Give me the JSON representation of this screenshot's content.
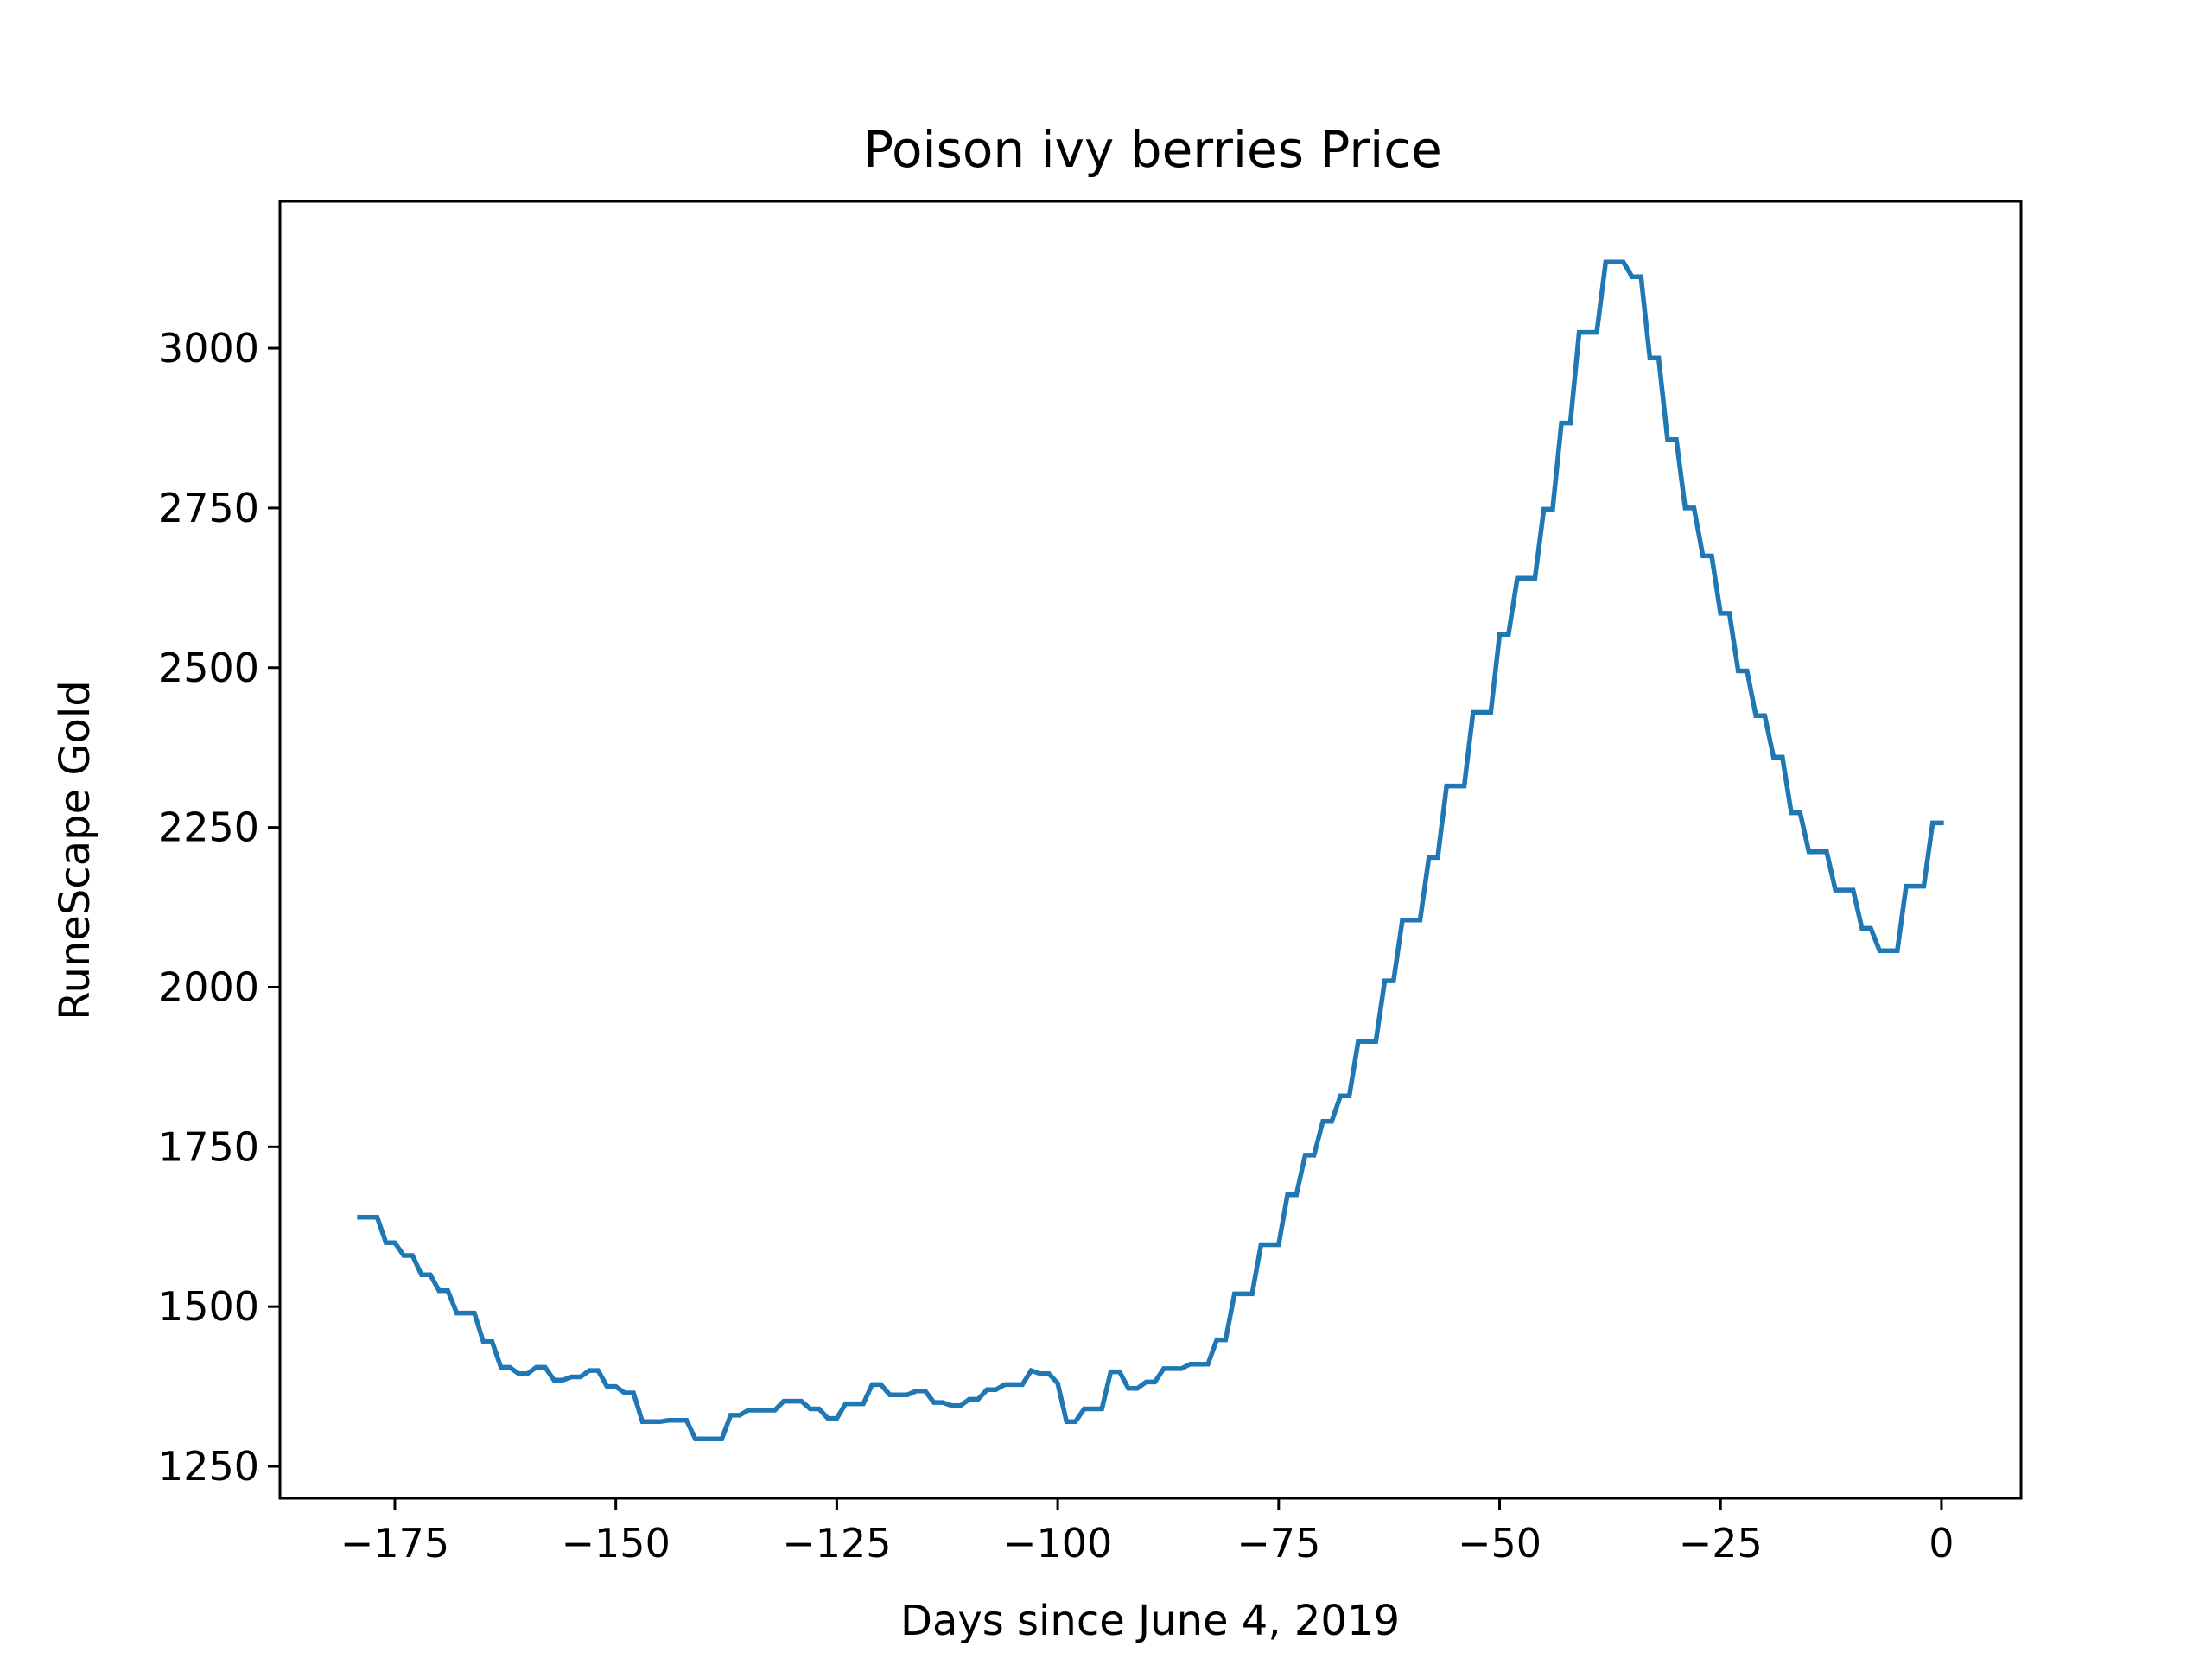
{
  "chart_data": {
    "type": "line",
    "title": "Poison ivy berries Price",
    "xlabel": "Days since June 4, 2019",
    "ylabel": "RuneScape Gold",
    "xlim": [
      -188,
      9
    ],
    "ylim": [
      1200,
      3230
    ],
    "xticks": [
      -175,
      -150,
      -125,
      -100,
      -75,
      -50,
      -25,
      0
    ],
    "xtick_labels": [
      "−175",
      "−150",
      "−125",
      "−100",
      "−75",
      "−50",
      "−25",
      "0"
    ],
    "yticks": [
      1250,
      1500,
      1750,
      2000,
      2250,
      2500,
      2750,
      3000
    ],
    "ytick_labels": [
      "1250",
      "1500",
      "1750",
      "2000",
      "2250",
      "2500",
      "2750",
      "3000"
    ],
    "grid": false,
    "series": [
      {
        "color": "#1f77b4",
        "points": [
          [
            -179,
            1640
          ],
          [
            -177,
            1640
          ],
          [
            -176,
            1600
          ],
          [
            -175,
            1600
          ],
          [
            -174,
            1580
          ],
          [
            -173,
            1580
          ],
          [
            -172,
            1550
          ],
          [
            -171,
            1550
          ],
          [
            -170,
            1525
          ],
          [
            -169,
            1525
          ],
          [
            -168,
            1490
          ],
          [
            -166,
            1490
          ],
          [
            -165,
            1445
          ],
          [
            -164,
            1445
          ],
          [
            -163,
            1405
          ],
          [
            -162,
            1405
          ],
          [
            -161,
            1395
          ],
          [
            -160,
            1395
          ],
          [
            -159,
            1405
          ],
          [
            -158,
            1405
          ],
          [
            -157,
            1385
          ],
          [
            -156,
            1385
          ],
          [
            -155,
            1390
          ],
          [
            -154,
            1390
          ],
          [
            -153,
            1400
          ],
          [
            -152,
            1400
          ],
          [
            -151,
            1375
          ],
          [
            -150,
            1375
          ],
          [
            -149,
            1365
          ],
          [
            -148,
            1365
          ],
          [
            -147,
            1320
          ],
          [
            -145,
            1320
          ],
          [
            -144,
            1322
          ],
          [
            -142,
            1322
          ],
          [
            -141,
            1293
          ],
          [
            -138,
            1293
          ],
          [
            -137,
            1330
          ],
          [
            -136,
            1330
          ],
          [
            -135,
            1338
          ],
          [
            -132,
            1338
          ],
          [
            -131,
            1352
          ],
          [
            -129,
            1352
          ],
          [
            -128,
            1340
          ],
          [
            -127,
            1340
          ],
          [
            -126,
            1325
          ],
          [
            -125,
            1325
          ],
          [
            -124,
            1348
          ],
          [
            -122,
            1348
          ],
          [
            -121,
            1378
          ],
          [
            -120,
            1378
          ],
          [
            -119,
            1362
          ],
          [
            -117,
            1362
          ],
          [
            -116,
            1368
          ],
          [
            -115,
            1368
          ],
          [
            -114,
            1350
          ],
          [
            -113,
            1350
          ],
          [
            -112,
            1345
          ],
          [
            -111,
            1345
          ],
          [
            -110,
            1355
          ],
          [
            -109,
            1355
          ],
          [
            -108,
            1370
          ],
          [
            -107,
            1370
          ],
          [
            -106,
            1378
          ],
          [
            -104,
            1378
          ],
          [
            -103,
            1400
          ],
          [
            -102,
            1395
          ],
          [
            -101,
            1395
          ],
          [
            -100,
            1380
          ],
          [
            -99,
            1320
          ],
          [
            -98,
            1320
          ],
          [
            -97,
            1340
          ],
          [
            -95,
            1340
          ],
          [
            -94,
            1398
          ],
          [
            -93,
            1398
          ],
          [
            -92,
            1372
          ],
          [
            -91,
            1372
          ],
          [
            -90,
            1382
          ],
          [
            -89,
            1382
          ],
          [
            -88,
            1403
          ],
          [
            -86,
            1403
          ],
          [
            -85,
            1410
          ],
          [
            -83,
            1410
          ],
          [
            -82,
            1448
          ],
          [
            -81,
            1448
          ],
          [
            -80,
            1520
          ],
          [
            -78,
            1520
          ],
          [
            -77,
            1597
          ],
          [
            -75,
            1597
          ],
          [
            -74,
            1675
          ],
          [
            -73,
            1675
          ],
          [
            -72,
            1737
          ],
          [
            -71,
            1737
          ],
          [
            -70,
            1790
          ],
          [
            -69,
            1790
          ],
          [
            -68,
            1830
          ],
          [
            -67,
            1830
          ],
          [
            -66,
            1915
          ],
          [
            -64,
            1915
          ],
          [
            -63,
            2010
          ],
          [
            -62,
            2010
          ],
          [
            -61,
            2105
          ],
          [
            -59,
            2105
          ],
          [
            -58,
            2203
          ],
          [
            -57,
            2203
          ],
          [
            -56,
            2315
          ],
          [
            -54,
            2315
          ],
          [
            -53,
            2430
          ],
          [
            -51,
            2430
          ],
          [
            -50,
            2552
          ],
          [
            -49,
            2552
          ],
          [
            -48,
            2640
          ],
          [
            -46,
            2640
          ],
          [
            -45,
            2748
          ],
          [
            -44,
            2748
          ],
          [
            -43,
            2883
          ],
          [
            -42,
            2883
          ],
          [
            -41,
            3025
          ],
          [
            -39,
            3025
          ],
          [
            -38,
            3135
          ],
          [
            -36,
            3135
          ],
          [
            -35,
            3112
          ],
          [
            -34,
            3112
          ],
          [
            -33,
            2985
          ],
          [
            -32,
            2985
          ],
          [
            -31,
            2857
          ],
          [
            -30,
            2857
          ],
          [
            -29,
            2750
          ],
          [
            -28,
            2750
          ],
          [
            -27,
            2675
          ],
          [
            -26,
            2675
          ],
          [
            -25,
            2585
          ],
          [
            -24,
            2585
          ],
          [
            -23,
            2495
          ],
          [
            -22,
            2495
          ],
          [
            -21,
            2425
          ],
          [
            -20,
            2425
          ],
          [
            -19,
            2360
          ],
          [
            -18,
            2360
          ],
          [
            -17,
            2273
          ],
          [
            -16,
            2273
          ],
          [
            -15,
            2212
          ],
          [
            -13,
            2212
          ],
          [
            -12,
            2152
          ],
          [
            -10,
            2152
          ],
          [
            -9,
            2092
          ],
          [
            -8,
            2092
          ],
          [
            -7,
            2057
          ],
          [
            -5,
            2057
          ],
          [
            -4,
            2158
          ],
          [
            -2,
            2158
          ],
          [
            -1,
            2257
          ],
          [
            0,
            2257
          ]
        ]
      }
    ]
  }
}
